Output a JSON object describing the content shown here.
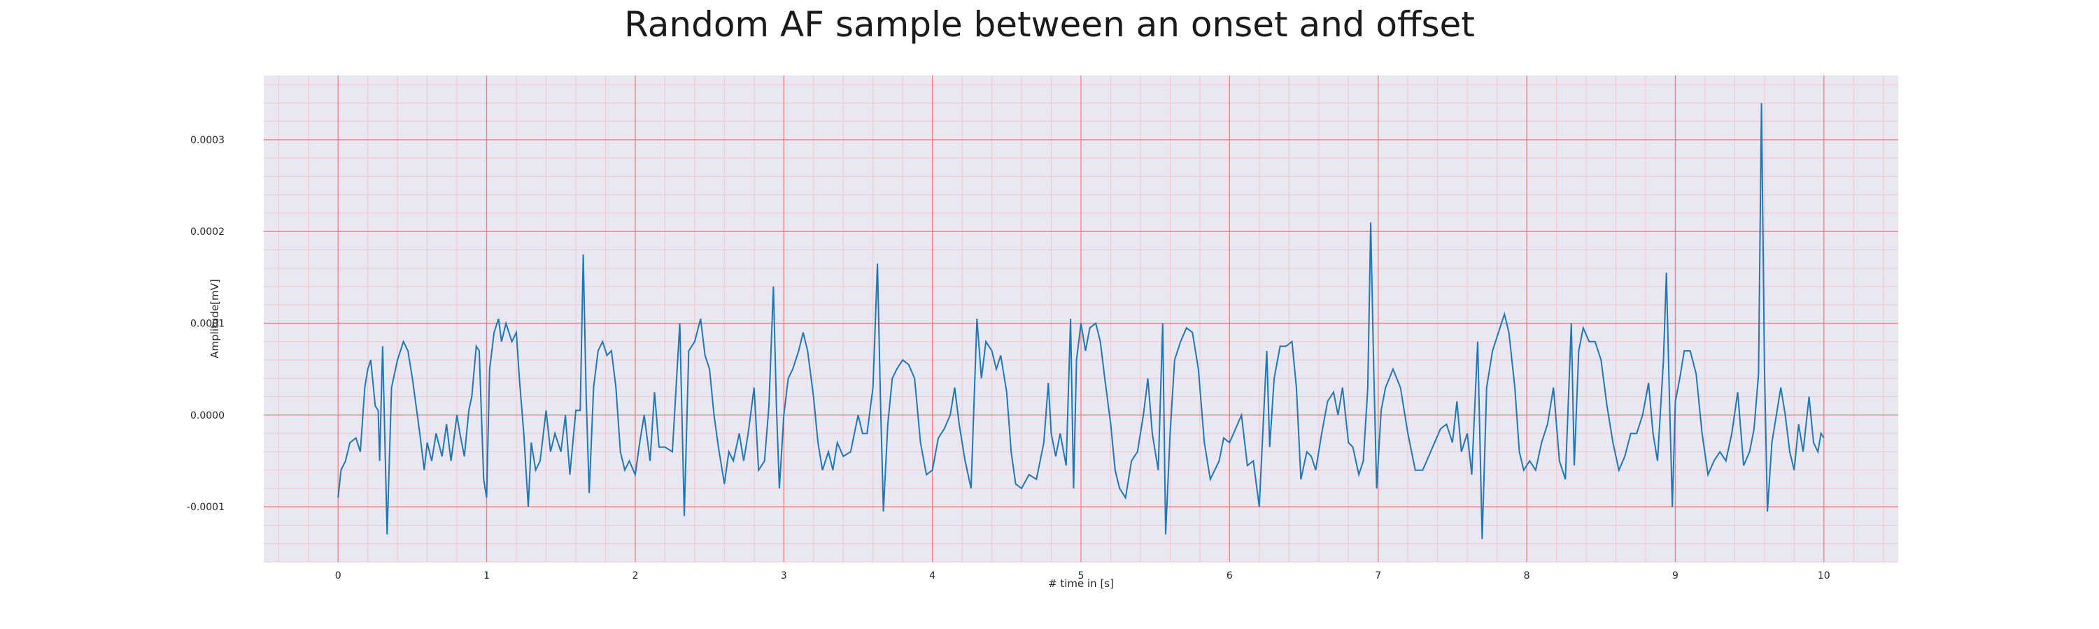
{
  "chart_data": {
    "type": "line",
    "title": "Random AF sample between an onset and offset",
    "xlabel": "# time in [s]",
    "ylabel": "Amplitude[mV]",
    "xlim": [
      -0.5,
      10.5
    ],
    "ylim": [
      -0.00016,
      0.00037
    ],
    "x_ticks": [
      0,
      1,
      2,
      3,
      4,
      5,
      6,
      7,
      8,
      9,
      10
    ],
    "y_ticks": [
      -0.0001,
      0.0,
      0.0001,
      0.0002,
      0.0003
    ],
    "y_tick_labels": [
      "-0.0001",
      "0.0000",
      "0.0001",
      "0.0002",
      "0.0003"
    ],
    "grid": true,
    "grid_color_major": "#f08080",
    "grid_color_minor": "#f4c6c6",
    "background": "#e9e7f1",
    "line_color": "#1f77b4",
    "series": [
      {
        "points": [
          [
            0.0,
            -9e-05
          ],
          [
            0.02,
            -6e-05
          ],
          [
            0.05,
            -5e-05
          ],
          [
            0.08,
            -3e-05
          ],
          [
            0.12,
            -2.5e-05
          ],
          [
            0.15,
            -4e-05
          ],
          [
            0.18,
            3e-05
          ],
          [
            0.2,
            5e-05
          ],
          [
            0.22,
            6e-05
          ],
          [
            0.25,
            1e-05
          ],
          [
            0.27,
            5e-06
          ],
          [
            0.28,
            -5e-05
          ],
          [
            0.3,
            7.5e-05
          ],
          [
            0.33,
            -0.00013
          ],
          [
            0.36,
            3e-05
          ],
          [
            0.4,
            6e-05
          ],
          [
            0.44,
            8e-05
          ],
          [
            0.47,
            7e-05
          ],
          [
            0.5,
            4e-05
          ],
          [
            0.55,
            -2e-05
          ],
          [
            0.58,
            -6e-05
          ],
          [
            0.6,
            -3e-05
          ],
          [
            0.63,
            -5e-05
          ],
          [
            0.66,
            -2e-05
          ],
          [
            0.7,
            -4.5e-05
          ],
          [
            0.73,
            -1e-05
          ],
          [
            0.76,
            -5e-05
          ],
          [
            0.8,
            0.0
          ],
          [
            0.82,
            -2e-05
          ],
          [
            0.85,
            -4.5e-05
          ],
          [
            0.88,
            5e-06
          ],
          [
            0.9,
            2e-05
          ],
          [
            0.93,
            7.5e-05
          ],
          [
            0.95,
            7e-05
          ],
          [
            0.98,
            -7e-05
          ],
          [
            1.0,
            -9e-05
          ],
          [
            1.02,
            5e-05
          ],
          [
            1.05,
            9e-05
          ],
          [
            1.08,
            0.000105
          ],
          [
            1.1,
            8e-05
          ],
          [
            1.13,
            0.0001
          ],
          [
            1.17,
            8e-05
          ],
          [
            1.2,
            9e-05
          ],
          [
            1.22,
            4e-05
          ],
          [
            1.25,
            -2e-05
          ],
          [
            1.28,
            -0.0001
          ],
          [
            1.3,
            -3e-05
          ],
          [
            1.33,
            -6e-05
          ],
          [
            1.36,
            -5e-05
          ],
          [
            1.4,
            5e-06
          ],
          [
            1.43,
            -4e-05
          ],
          [
            1.46,
            -2e-05
          ],
          [
            1.5,
            -4e-05
          ],
          [
            1.53,
            0.0
          ],
          [
            1.56,
            -6.5e-05
          ],
          [
            1.6,
            5e-06
          ],
          [
            1.63,
            5e-06
          ],
          [
            1.65,
            0.000175
          ],
          [
            1.67,
            2e-05
          ],
          [
            1.69,
            -8.5e-05
          ],
          [
            1.72,
            3e-05
          ],
          [
            1.75,
            7e-05
          ],
          [
            1.78,
            8e-05
          ],
          [
            1.81,
            6.5e-05
          ],
          [
            1.84,
            7e-05
          ],
          [
            1.87,
            3e-05
          ],
          [
            1.9,
            -4e-05
          ],
          [
            1.93,
            -6e-05
          ],
          [
            1.96,
            -5e-05
          ],
          [
            2.0,
            -6.5e-05
          ],
          [
            2.03,
            -3e-05
          ],
          [
            2.06,
            0.0
          ],
          [
            2.1,
            -5e-05
          ],
          [
            2.13,
            2.5e-05
          ],
          [
            2.16,
            -3.5e-05
          ],
          [
            2.2,
            -3.5e-05
          ],
          [
            2.25,
            -4e-05
          ],
          [
            2.3,
            0.0001
          ],
          [
            2.33,
            -0.00011
          ],
          [
            2.36,
            7e-05
          ],
          [
            2.4,
            8e-05
          ],
          [
            2.44,
            0.000105
          ],
          [
            2.47,
            6.5e-05
          ],
          [
            2.5,
            5e-05
          ],
          [
            2.53,
            0.0
          ],
          [
            2.56,
            -3.5e-05
          ],
          [
            2.6,
            -7.5e-05
          ],
          [
            2.63,
            -4e-05
          ],
          [
            2.66,
            -5e-05
          ],
          [
            2.7,
            -2e-05
          ],
          [
            2.73,
            -5e-05
          ],
          [
            2.76,
            -2e-05
          ],
          [
            2.8,
            3e-05
          ],
          [
            2.83,
            -6e-05
          ],
          [
            2.87,
            -5e-05
          ],
          [
            2.9,
            1e-05
          ],
          [
            2.93,
            0.00014
          ],
          [
            2.95,
            1e-05
          ],
          [
            2.97,
            -8e-05
          ],
          [
            3.0,
            0.0
          ],
          [
            3.03,
            4e-05
          ],
          [
            3.06,
            5e-05
          ],
          [
            3.1,
            7e-05
          ],
          [
            3.13,
            9e-05
          ],
          [
            3.16,
            7e-05
          ],
          [
            3.2,
            2e-05
          ],
          [
            3.23,
            -3e-05
          ],
          [
            3.26,
            -6e-05
          ],
          [
            3.3,
            -4e-05
          ],
          [
            3.33,
            -6e-05
          ],
          [
            3.36,
            -3e-05
          ],
          [
            3.4,
            -4.5e-05
          ],
          [
            3.45,
            -4e-05
          ],
          [
            3.5,
            0.0
          ],
          [
            3.53,
            -2e-05
          ],
          [
            3.56,
            -2e-05
          ],
          [
            3.6,
            3e-05
          ],
          [
            3.63,
            0.000165
          ],
          [
            3.65,
            2e-05
          ],
          [
            3.67,
            -0.000105
          ],
          [
            3.7,
            -1e-05
          ],
          [
            3.73,
            4e-05
          ],
          [
            3.76,
            5e-05
          ],
          [
            3.8,
            6e-05
          ],
          [
            3.84,
            5.5e-05
          ],
          [
            3.88,
            4e-05
          ],
          [
            3.92,
            -3e-05
          ],
          [
            3.96,
            -6.5e-05
          ],
          [
            4.0,
            -6e-05
          ],
          [
            4.04,
            -2.5e-05
          ],
          [
            4.08,
            -1.5e-05
          ],
          [
            4.12,
            0.0
          ],
          [
            4.15,
            3e-05
          ],
          [
            4.18,
            -1e-05
          ],
          [
            4.22,
            -5e-05
          ],
          [
            4.26,
            -8e-05
          ],
          [
            4.3,
            0.000105
          ],
          [
            4.33,
            4e-05
          ],
          [
            4.36,
            8e-05
          ],
          [
            4.4,
            7e-05
          ],
          [
            4.43,
            5e-05
          ],
          [
            4.46,
            6.5e-05
          ],
          [
            4.5,
            2.5e-05
          ],
          [
            4.53,
            -4e-05
          ],
          [
            4.56,
            -7.5e-05
          ],
          [
            4.6,
            -8e-05
          ],
          [
            4.65,
            -6.5e-05
          ],
          [
            4.7,
            -7e-05
          ],
          [
            4.75,
            -3e-05
          ],
          [
            4.78,
            3.5e-05
          ],
          [
            4.8,
            -2e-05
          ],
          [
            4.83,
            -4.5e-05
          ],
          [
            4.86,
            -2e-05
          ],
          [
            4.9,
            -5.5e-05
          ],
          [
            4.93,
            0.000105
          ],
          [
            4.95,
            -8e-05
          ],
          [
            4.97,
            6e-05
          ],
          [
            5.0,
            0.0001
          ],
          [
            5.03,
            7e-05
          ],
          [
            5.06,
            9.5e-05
          ],
          [
            5.1,
            0.0001
          ],
          [
            5.13,
            8e-05
          ],
          [
            5.16,
            4e-05
          ],
          [
            5.2,
            -1e-05
          ],
          [
            5.23,
            -6e-05
          ],
          [
            5.26,
            -8e-05
          ],
          [
            5.3,
            -9e-05
          ],
          [
            5.34,
            -5e-05
          ],
          [
            5.38,
            -4e-05
          ],
          [
            5.42,
            0.0
          ],
          [
            5.45,
            4e-05
          ],
          [
            5.48,
            -2e-05
          ],
          [
            5.52,
            -6e-05
          ],
          [
            5.55,
            0.0001
          ],
          [
            5.57,
            -0.00013
          ],
          [
            5.6,
            -2e-05
          ],
          [
            5.63,
            6e-05
          ],
          [
            5.67,
            8e-05
          ],
          [
            5.71,
            9.5e-05
          ],
          [
            5.75,
            9e-05
          ],
          [
            5.79,
            5e-05
          ],
          [
            5.83,
            -3e-05
          ],
          [
            5.87,
            -7e-05
          ],
          [
            5.9,
            -6e-05
          ],
          [
            5.93,
            -5e-05
          ],
          [
            5.96,
            -2.5e-05
          ],
          [
            6.0,
            -3e-05
          ],
          [
            6.04,
            -1.5e-05
          ],
          [
            6.08,
            0.0
          ],
          [
            6.12,
            -5.5e-05
          ],
          [
            6.16,
            -5e-05
          ],
          [
            6.2,
            -0.0001
          ],
          [
            6.25,
            7e-05
          ],
          [
            6.27,
            -3.5e-05
          ],
          [
            6.3,
            4e-05
          ],
          [
            6.34,
            7.5e-05
          ],
          [
            6.38,
            7.5e-05
          ],
          [
            6.42,
            8e-05
          ],
          [
            6.45,
            3e-05
          ],
          [
            6.48,
            -7e-05
          ],
          [
            6.52,
            -4e-05
          ],
          [
            6.55,
            -4.5e-05
          ],
          [
            6.58,
            -6e-05
          ],
          [
            6.62,
            -2e-05
          ],
          [
            6.66,
            1.5e-05
          ],
          [
            6.7,
            2.5e-05
          ],
          [
            6.73,
            0.0
          ],
          [
            6.76,
            3e-05
          ],
          [
            6.8,
            -3e-05
          ],
          [
            6.83,
            -3.5e-05
          ],
          [
            6.87,
            -6.5e-05
          ],
          [
            6.9,
            -5e-05
          ],
          [
            6.93,
            3e-05
          ],
          [
            6.95,
            0.00021
          ],
          [
            6.97,
            5e-05
          ],
          [
            6.99,
            -8e-05
          ],
          [
            7.02,
            5e-06
          ],
          [
            7.05,
            3e-05
          ],
          [
            7.1,
            5e-05
          ],
          [
            7.15,
            3e-05
          ],
          [
            7.2,
            -2e-05
          ],
          [
            7.25,
            -6e-05
          ],
          [
            7.3,
            -6e-05
          ],
          [
            7.34,
            -4.5e-05
          ],
          [
            7.38,
            -3e-05
          ],
          [
            7.42,
            -1.5e-05
          ],
          [
            7.46,
            -1e-05
          ],
          [
            7.5,
            -3e-05
          ],
          [
            7.53,
            1.5e-05
          ],
          [
            7.56,
            -4e-05
          ],
          [
            7.6,
            -2e-05
          ],
          [
            7.63,
            -6.5e-05
          ],
          [
            7.67,
            8e-05
          ],
          [
            7.7,
            -0.000135
          ],
          [
            7.73,
            3e-05
          ],
          [
            7.77,
            7e-05
          ],
          [
            7.81,
            9e-05
          ],
          [
            7.85,
            0.00011
          ],
          [
            7.88,
            9e-05
          ],
          [
            7.92,
            3e-05
          ],
          [
            7.95,
            -4e-05
          ],
          [
            7.98,
            -6e-05
          ],
          [
            8.02,
            -5e-05
          ],
          [
            8.06,
            -6e-05
          ],
          [
            8.1,
            -3e-05
          ],
          [
            8.14,
            -1e-05
          ],
          [
            8.18,
            3e-05
          ],
          [
            8.22,
            -5e-05
          ],
          [
            8.26,
            -7e-05
          ],
          [
            8.3,
            0.0001
          ],
          [
            8.32,
            -5.5e-05
          ],
          [
            8.35,
            7e-05
          ],
          [
            8.38,
            9.5e-05
          ],
          [
            8.42,
            8e-05
          ],
          [
            8.46,
            8e-05
          ],
          [
            8.5,
            6e-05
          ],
          [
            8.54,
            1e-05
          ],
          [
            8.58,
            -3e-05
          ],
          [
            8.62,
            -6e-05
          ],
          [
            8.66,
            -4.5e-05
          ],
          [
            8.7,
            -2e-05
          ],
          [
            8.74,
            -2e-05
          ],
          [
            8.78,
            0.0
          ],
          [
            8.82,
            3.5e-05
          ],
          [
            8.85,
            -2e-05
          ],
          [
            8.88,
            -5e-05
          ],
          [
            8.92,
            6e-05
          ],
          [
            8.94,
            0.000155
          ],
          [
            8.96,
            2e-05
          ],
          [
            8.98,
            -0.0001
          ],
          [
            9.0,
            1.5e-05
          ],
          [
            9.03,
            4e-05
          ],
          [
            9.06,
            7e-05
          ],
          [
            9.1,
            7e-05
          ],
          [
            9.14,
            4.5e-05
          ],
          [
            9.18,
            -2e-05
          ],
          [
            9.22,
            -6.5e-05
          ],
          [
            9.26,
            -5e-05
          ],
          [
            9.3,
            -4e-05
          ],
          [
            9.34,
            -5e-05
          ],
          [
            9.38,
            -2e-05
          ],
          [
            9.42,
            2.5e-05
          ],
          [
            9.46,
            -5.5e-05
          ],
          [
            9.5,
            -4e-05
          ],
          [
            9.53,
            -1.5e-05
          ],
          [
            9.56,
            4.5e-05
          ],
          [
            9.58,
            0.00034
          ],
          [
            9.6,
            5e-05
          ],
          [
            9.62,
            -0.000105
          ],
          [
            9.65,
            -3e-05
          ],
          [
            9.68,
            0.0
          ],
          [
            9.71,
            3e-05
          ],
          [
            9.74,
            0.0
          ],
          [
            9.77,
            -4e-05
          ],
          [
            9.8,
            -6e-05
          ],
          [
            9.83,
            -1e-05
          ],
          [
            9.86,
            -4e-05
          ],
          [
            9.9,
            2e-05
          ],
          [
            9.93,
            -3e-05
          ],
          [
            9.96,
            -4e-05
          ],
          [
            9.98,
            -2e-05
          ],
          [
            10.0,
            -2.5e-05
          ]
        ]
      }
    ]
  }
}
